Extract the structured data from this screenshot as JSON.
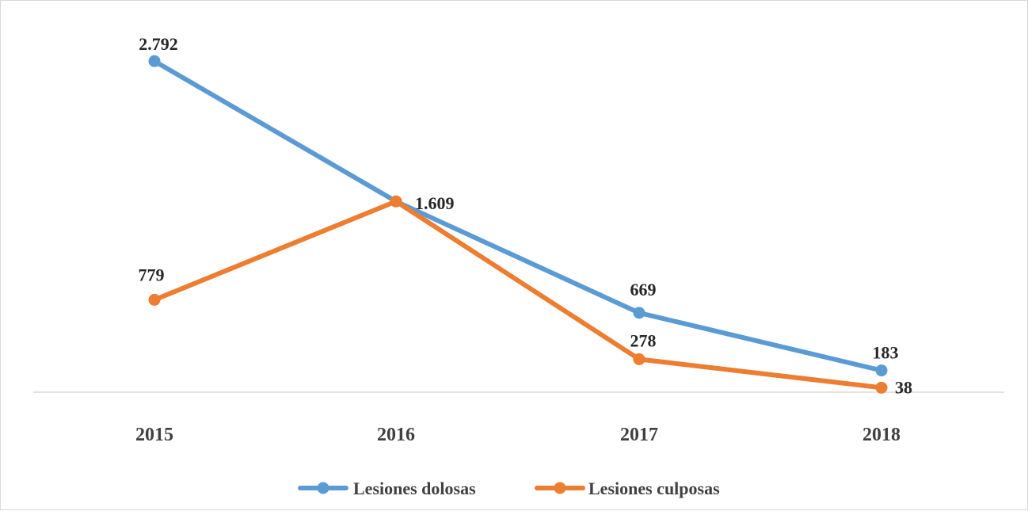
{
  "chart_data": {
    "type": "line",
    "title": "",
    "xlabel": "",
    "ylabel": "",
    "categories": [
      "2015",
      "2016",
      "2017",
      "2018"
    ],
    "ylim": [
      0,
      2900
    ],
    "grid": false,
    "legend_position": "bottom",
    "series": [
      {
        "name": "Lesiones dolosas",
        "color": "#5b9bd5",
        "values": [
          2792,
          1609,
          669,
          183
        ],
        "labels": [
          "2.792",
          "1.609",
          "669",
          "183"
        ]
      },
      {
        "name": "Lesiones culposas",
        "color": "#ed7d31",
        "values": [
          779,
          1609,
          278,
          38
        ],
        "labels": [
          "779",
          "",
          "278",
          "38"
        ]
      }
    ]
  }
}
